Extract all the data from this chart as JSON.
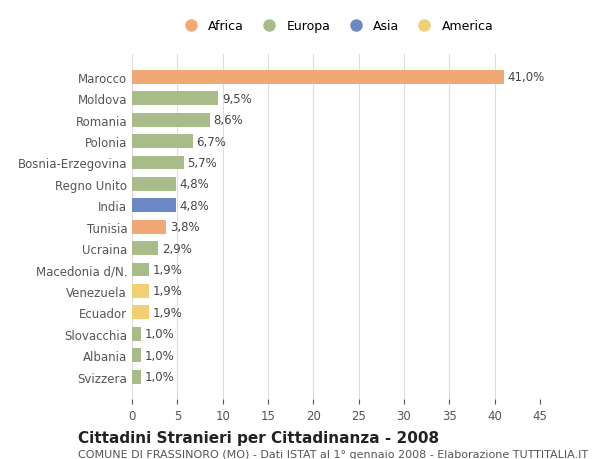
{
  "categories": [
    "Svizzera",
    "Albania",
    "Slovacchia",
    "Ecuador",
    "Venezuela",
    "Macedonia d/N.",
    "Ucraina",
    "Tunisia",
    "India",
    "Regno Unito",
    "Bosnia-Erzegovina",
    "Polonia",
    "Romania",
    "Moldova",
    "Marocco"
  ],
  "values": [
    1.0,
    1.0,
    1.0,
    1.9,
    1.9,
    1.9,
    2.9,
    3.8,
    4.8,
    4.8,
    5.7,
    6.7,
    8.6,
    9.5,
    41.0
  ],
  "labels": [
    "1,0%",
    "1,0%",
    "1,0%",
    "1,9%",
    "1,9%",
    "1,9%",
    "2,9%",
    "3,8%",
    "4,8%",
    "4,8%",
    "5,7%",
    "6,7%",
    "8,6%",
    "9,5%",
    "41,0%"
  ],
  "continents": [
    "Europa",
    "Europa",
    "Europa",
    "America",
    "America",
    "Europa",
    "Europa",
    "Africa",
    "Asia",
    "Europa",
    "Europa",
    "Europa",
    "Europa",
    "Europa",
    "Africa"
  ],
  "colors": {
    "Africa": "#f0a875",
    "Europa": "#a8bc8a",
    "Asia": "#6b88c4",
    "America": "#f0d070"
  },
  "legend_order": [
    "Africa",
    "Europa",
    "Asia",
    "America"
  ],
  "legend_colors": {
    "Africa": "#f0a875",
    "Europa": "#a8bc8a",
    "Asia": "#6b88c4",
    "America": "#f0d070"
  },
  "title": "Cittadini Stranieri per Cittadinanza - 2008",
  "subtitle": "COMUNE DI FRASSINORO (MO) - Dati ISTAT al 1° gennaio 2008 - Elaborazione TUTTITALIA.IT",
  "xlim": [
    0,
    45
  ],
  "xticks": [
    0,
    5,
    10,
    15,
    20,
    25,
    30,
    35,
    40,
    45
  ],
  "bar_height": 0.65,
  "background_color": "#ffffff",
  "grid_color": "#dddddd",
  "label_fontsize": 8.5,
  "tick_fontsize": 8.5,
  "title_fontsize": 11,
  "subtitle_fontsize": 8
}
